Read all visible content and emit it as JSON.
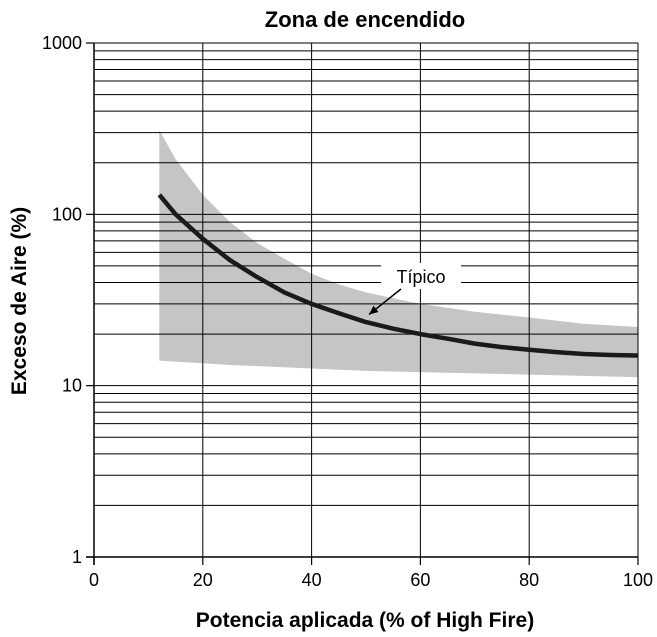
{
  "chart_data": {
    "type": "line",
    "title": "Zona de encendido",
    "xlabel": "Potencia aplicada (% of High Fire)",
    "ylabel": "Exceso de Aire (%)",
    "xlim": [
      0,
      100
    ],
    "ylim": [
      1,
      1000
    ],
    "yscale": "log",
    "grid": true,
    "x_ticks": [
      0,
      20,
      40,
      60,
      80,
      100
    ],
    "x_tick_labels": [
      "0",
      "20",
      "40",
      "60",
      "80",
      "100"
    ],
    "y_ticks": [
      1,
      10,
      100,
      1000
    ],
    "y_tick_labels": [
      "1",
      "10",
      "100",
      "1000"
    ],
    "band": {
      "x": [
        12,
        15,
        20,
        25,
        30,
        35,
        40,
        45,
        50,
        60,
        70,
        80,
        90,
        100
      ],
      "upper": [
        310,
        210,
        130,
        90,
        68,
        55,
        45,
        39,
        35,
        30,
        27,
        25,
        23,
        22
      ],
      "lower": [
        14,
        13.8,
        13.5,
        13.2,
        13,
        12.8,
        12.6,
        12.4,
        12.2,
        12,
        11.8,
        11.6,
        11.4,
        11.2
      ],
      "color": "#c4c5c7"
    },
    "series": [
      {
        "x": [
          12,
          15,
          20,
          25,
          30,
          35,
          40,
          45,
          50,
          55,
          60,
          65,
          70,
          75,
          80,
          85,
          90,
          95,
          100
        ],
        "values": [
          130,
          100,
          72,
          54,
          43,
          35,
          30,
          26.5,
          23.5,
          21.5,
          20,
          18.8,
          17.6,
          16.8,
          16.2,
          15.7,
          15.3,
          15.1,
          15
        ],
        "color": "#1a1a1a"
      }
    ],
    "annotations": [
      {
        "text": "Típico",
        "x": 50,
        "y": 24
      }
    ]
  }
}
